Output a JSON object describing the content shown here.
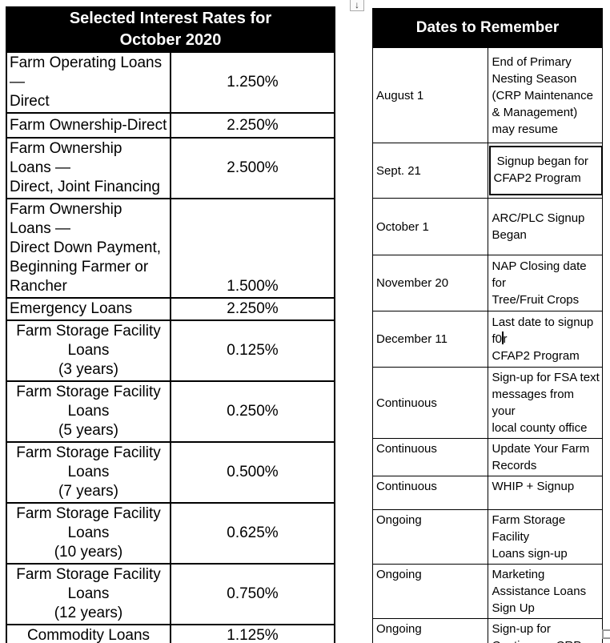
{
  "colors": {
    "header_bg": "#000000",
    "header_fg": "#ffffff",
    "table_border": "#000000",
    "handle_border": "#999999",
    "page_bg": "#ffffff"
  },
  "icons": {
    "table_anchor_glyph": "↓"
  },
  "rates_table": {
    "title": "Selected Interest Rates for\nOctober 2020",
    "rows": [
      {
        "name": "Farm Operating Loans —\nDirect",
        "rate": "1.250%"
      },
      {
        "name": "Farm Ownership-Direct",
        "rate": "2.250%"
      },
      {
        "name": "Farm Ownership Loans —\nDirect, Joint Financing",
        "rate": "2.500%"
      },
      {
        "name": "Farm Ownership Loans —\nDirect Down Payment,\nBeginning Farmer or Rancher",
        "rate": "1.500%"
      },
      {
        "name": "Emergency Loans",
        "rate": "2.250%"
      },
      {
        "name": "Farm Storage Facility Loans\n(3 years)",
        "rate": "0.125%"
      },
      {
        "name": "Farm Storage Facility Loans\n(5 years)",
        "rate": "0.250%"
      },
      {
        "name": "Farm Storage Facility Loans\n(7 years)",
        "rate": "0.500%"
      },
      {
        "name": "Farm Storage Facility Loans\n(10 years)",
        "rate": "0.625%"
      },
      {
        "name": "Farm Storage Facility Loans\n(12 years)",
        "rate": "0.750%"
      },
      {
        "name": "Commodity Loans",
        "rate": "1.125%"
      }
    ]
  },
  "dates_table": {
    "title": "Dates to Remember",
    "rows": [
      {
        "date": "August 1",
        "event": "End of Primary\nNesting Season\n(CRP Maintenance\n& Management)\nmay resume"
      },
      {
        "date": "Sept. 21",
        "event": " Signup began for\nCFAP2 Program"
      },
      {
        "date": "October 1",
        "event": "ARC/PLC Signup\nBegan"
      },
      {
        "date": "November 20",
        "event": "NAP Closing date for\nTree/Fruit Crops"
      },
      {
        "date": "December 11",
        "event_before_caret": "Last date to signup f0",
        "event_after_caret": "r\nCFAP2 Program"
      },
      {
        "date": "Continuous",
        "event": "Sign-up for FSA text\nmessages from your\nlocal county office"
      },
      {
        "date": "Continuous",
        "event": "Update Your Farm\nRecords"
      },
      {
        "date": "Continuous",
        "event": "WHIP + Signup"
      },
      {
        "date": "Ongoing",
        "event": "Farm Storage\nFacility\nLoans sign-up"
      },
      {
        "date": "Ongoing",
        "event": "Marketing\nAssistance Loans\nSign Up"
      },
      {
        "date": "Ongoing",
        "event": "Sign-up for\nContinuous CRP"
      }
    ]
  }
}
